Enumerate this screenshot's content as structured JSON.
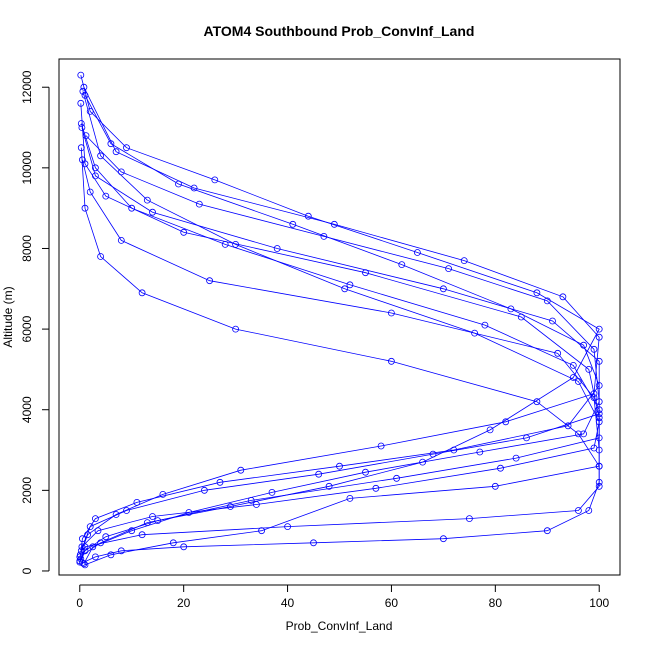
{
  "chart_data": {
    "type": "line",
    "title": "ATOM4 Southbound Prob_ConvInf_Land",
    "xlabel": "Prob_ConvInf_Land",
    "ylabel": "Altitude (m)",
    "xlim": [
      -4,
      104
    ],
    "ylim": [
      -100,
      12700
    ],
    "x_ticks": [
      0,
      20,
      40,
      60,
      80,
      100
    ],
    "y_ticks": [
      0,
      2000,
      4000,
      6000,
      8000,
      10000,
      12000
    ],
    "x_tick_labels": [
      "0",
      "20",
      "40",
      "60",
      "80",
      "100"
    ],
    "y_tick_labels": [
      "0",
      "2000",
      "4000",
      "6000",
      "8000",
      "10000",
      "12000"
    ],
    "grid": false,
    "marker": "open-circle",
    "line_style": "line-with-open-circle-markers",
    "color": "#0000ff",
    "series": [
      {
        "x": [
          0.5,
          3,
          8,
          20,
          45,
          70,
          90,
          98,
          100,
          100,
          96,
          88,
          60,
          30,
          12,
          4,
          1,
          0.3
        ],
        "y": [
          200,
          350,
          500,
          600,
          700,
          800,
          1000,
          1500,
          2200,
          2600,
          3400,
          4200,
          5200,
          6000,
          6900,
          7800,
          9000,
          10500
        ]
      },
      {
        "x": [
          0.2,
          1,
          12,
          40,
          75,
          96,
          100,
          100,
          99,
          92,
          60,
          25,
          8,
          2,
          0.5
        ],
        "y": [
          300,
          600,
          900,
          1100,
          1300,
          1500,
          2100,
          3000,
          4300,
          5400,
          6400,
          7200,
          8200,
          9400,
          10200
        ]
      },
      {
        "x": [
          1,
          6,
          18,
          35,
          52,
          80,
          100,
          100,
          98,
          85,
          55,
          20,
          5,
          1,
          0.2
        ],
        "y": [
          150,
          400,
          700,
          1000,
          1800,
          2100,
          2600,
          3800,
          5000,
          6300,
          7400,
          8400,
          9300,
          10100,
          11600
        ]
      },
      {
        "x": [
          0,
          0.5,
          3,
          11,
          27,
          50,
          72,
          94,
          100,
          97,
          83,
          62,
          41,
          19,
          6,
          1
        ],
        "y": [
          250,
          800,
          1300,
          1700,
          2200,
          2600,
          3000,
          3600,
          4600,
          5600,
          6500,
          7600,
          8600,
          9600,
          10600,
          11800
        ]
      },
      {
        "x": [
          0.3,
          2,
          9,
          24,
          46,
          68,
          86,
          100,
          100,
          91,
          70,
          38,
          14,
          3,
          0.4
        ],
        "y": [
          500,
          1100,
          1500,
          2000,
          2400,
          2900,
          3300,
          3900,
          5200,
          6200,
          7000,
          8000,
          8900,
          9800,
          11000
        ]
      },
      {
        "x": [
          0.1,
          1.5,
          7,
          16,
          31,
          58,
          82,
          99,
          100,
          93,
          74,
          49,
          22,
          7,
          0.8
        ],
        "y": [
          400,
          900,
          1400,
          1900,
          2500,
          3100,
          3700,
          4400,
          5800,
          6800,
          7700,
          8600,
          9500,
          10400,
          12000
        ]
      },
      {
        "x": [
          0,
          4,
          13,
          29,
          48,
          66,
          79,
          95,
          100,
          88,
          65,
          44,
          26,
          9,
          2,
          0.2
        ],
        "y": [
          350,
          700,
          1200,
          1600,
          2100,
          2700,
          3500,
          4800,
          6000,
          6900,
          7900,
          8800,
          9700,
          10500,
          11400,
          12300
        ]
      },
      {
        "x": [
          0.8,
          2.5,
          10,
          21,
          37,
          55,
          77,
          97,
          100,
          99,
          90,
          71,
          47,
          23,
          8,
          1.2
        ],
        "y": [
          180,
          600,
          1000,
          1450,
          1950,
          2450,
          2950,
          3400,
          4200,
          5500,
          6700,
          7500,
          8300,
          9100,
          9900,
          10800
        ]
      },
      {
        "x": [
          0,
          1,
          5,
          15,
          33,
          61,
          84,
          100,
          100,
          95,
          78,
          52,
          28,
          10,
          3,
          0.3
        ],
        "y": [
          220,
          500,
          850,
          1250,
          1750,
          2300,
          2800,
          3300,
          4000,
          5100,
          6100,
          7100,
          8100,
          9000,
          10000,
          11100
        ]
      },
      {
        "x": [
          0.4,
          3.5,
          14,
          34,
          57,
          81,
          99,
          100,
          96,
          76,
          51,
          30,
          13,
          4,
          0.6
        ],
        "y": [
          600,
          1000,
          1350,
          1650,
          2050,
          2550,
          3050,
          3700,
          4700,
          5900,
          7000,
          8100,
          9200,
          10300,
          11900
        ]
      }
    ]
  }
}
